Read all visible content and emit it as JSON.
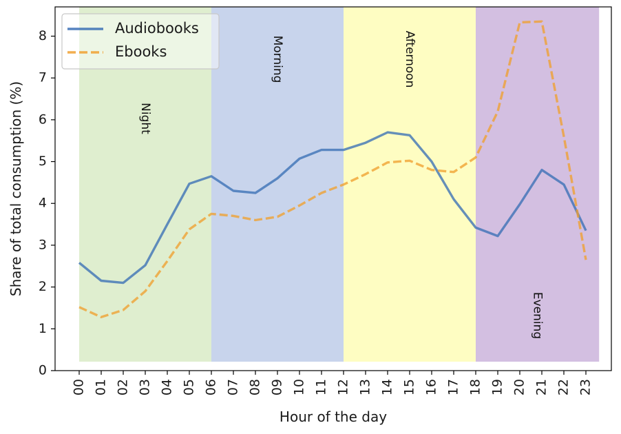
{
  "chart_data": {
    "type": "line",
    "title": "",
    "xlabel": "Hour of the day",
    "ylabel": "Share of total consumption (%)",
    "categories": [
      "00",
      "01",
      "02",
      "03",
      "04",
      "05",
      "06",
      "07",
      "08",
      "09",
      "10",
      "11",
      "12",
      "13",
      "14",
      "15",
      "16",
      "17",
      "18",
      "19",
      "20",
      "21",
      "22",
      "23"
    ],
    "ylim": [
      0,
      8.7
    ],
    "yticks": [
      0,
      1,
      2,
      3,
      4,
      5,
      6,
      7,
      8
    ],
    "grid": false,
    "legend_position": "top-left",
    "series": [
      {
        "name": "Audiobooks",
        "style": "solid",
        "color": "#3a6fb5",
        "values": [
          2.58,
          2.15,
          2.1,
          2.52,
          3.5,
          4.47,
          4.65,
          4.3,
          4.25,
          4.6,
          5.07,
          5.28,
          5.28,
          5.45,
          5.7,
          5.63,
          5.0,
          4.1,
          3.42,
          3.22,
          3.98,
          4.8,
          4.45,
          3.35
        ]
      },
      {
        "name": "Ebooks",
        "style": "dashed",
        "color": "#f0a030",
        "values": [
          1.52,
          1.28,
          1.45,
          1.9,
          2.62,
          3.38,
          3.75,
          3.7,
          3.6,
          3.68,
          3.95,
          4.25,
          4.45,
          4.7,
          4.98,
          5.02,
          4.8,
          4.75,
          5.1,
          6.2,
          8.33,
          8.35,
          5.6,
          2.65
        ]
      }
    ],
    "bands": [
      {
        "label": "Night",
        "start": 0,
        "end": 6,
        "color": "#dfeecf"
      },
      {
        "label": "Morning",
        "start": 6,
        "end": 12,
        "color": "#c8d4ec"
      },
      {
        "label": "Afternoon",
        "start": 12,
        "end": 18,
        "color": "#fefdc2"
      },
      {
        "label": "Evening",
        "start": 18,
        "end": 23.6,
        "color": "#d3bfe1"
      }
    ]
  }
}
